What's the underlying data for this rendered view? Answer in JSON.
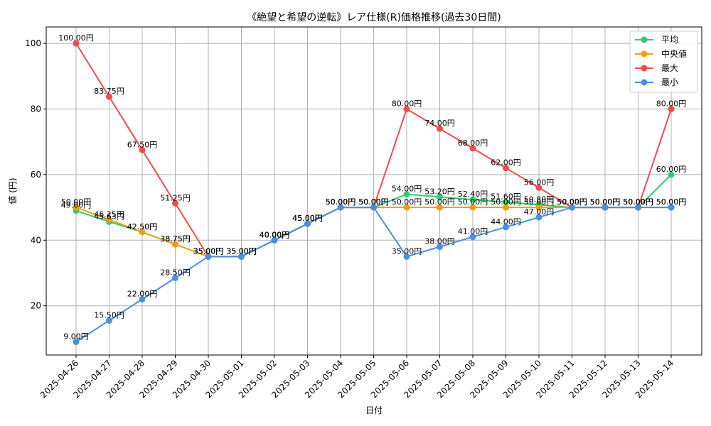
{
  "chart_data": {
    "type": "line",
    "title": "《絶望と希望の逆転》レア仕様(R)価格推移(過去30日間)",
    "xlabel": "日付",
    "ylabel": "値 (円)",
    "ylim": [
      5,
      105
    ],
    "yticks": [
      20,
      40,
      60,
      80,
      100
    ],
    "grid": true,
    "legend_position": "top-right",
    "label_suffix": "円",
    "categories": [
      "2025-04-26",
      "2025-04-27",
      "2025-04-28",
      "2025-04-29",
      "2025-04-30",
      "2025-05-01",
      "2025-05-02",
      "2025-05-03",
      "2025-05-04",
      "2025-05-05",
      "2025-05-06",
      "2025-05-07",
      "2025-05-08",
      "2025-05-09",
      "2025-05-10",
      "2025-05-11",
      "2025-05-12",
      "2025-05-13",
      "2025-05-14"
    ],
    "series": [
      {
        "name": "平均",
        "color": "#2ecc71",
        "values": [
          49.0,
          45.63,
          42.5,
          38.75,
          35.0,
          35.0,
          40.0,
          45.0,
          50.0,
          50.0,
          54.0,
          53.2,
          52.4,
          51.6,
          50.8,
          50.0,
          50.0,
          50.0,
          60.0
        ]
      },
      {
        "name": "中央値",
        "color": "#f39c12",
        "values": [
          50.0,
          46.25,
          42.5,
          38.75,
          35.0,
          35.0,
          40.0,
          45.0,
          50.0,
          50.0,
          50.0,
          50.0,
          50.0,
          50.0,
          50.0,
          50.0,
          50.0,
          50.0,
          50.0
        ]
      },
      {
        "name": "最大",
        "color": "#f04c4c",
        "values": [
          100.0,
          83.75,
          67.5,
          51.25,
          35.0,
          35.0,
          40.0,
          45.0,
          50.0,
          50.0,
          80.0,
          74.0,
          68.0,
          62.0,
          56.0,
          50.0,
          50.0,
          50.0,
          80.0
        ]
      },
      {
        "name": "最小",
        "color": "#4a90e2",
        "values": [
          9.0,
          15.5,
          22.0,
          28.5,
          35.0,
          35.0,
          40.0,
          45.0,
          50.0,
          50.0,
          35.0,
          38.0,
          41.0,
          44.0,
          47.0,
          50.0,
          50.0,
          50.0,
          50.0
        ]
      }
    ]
  }
}
